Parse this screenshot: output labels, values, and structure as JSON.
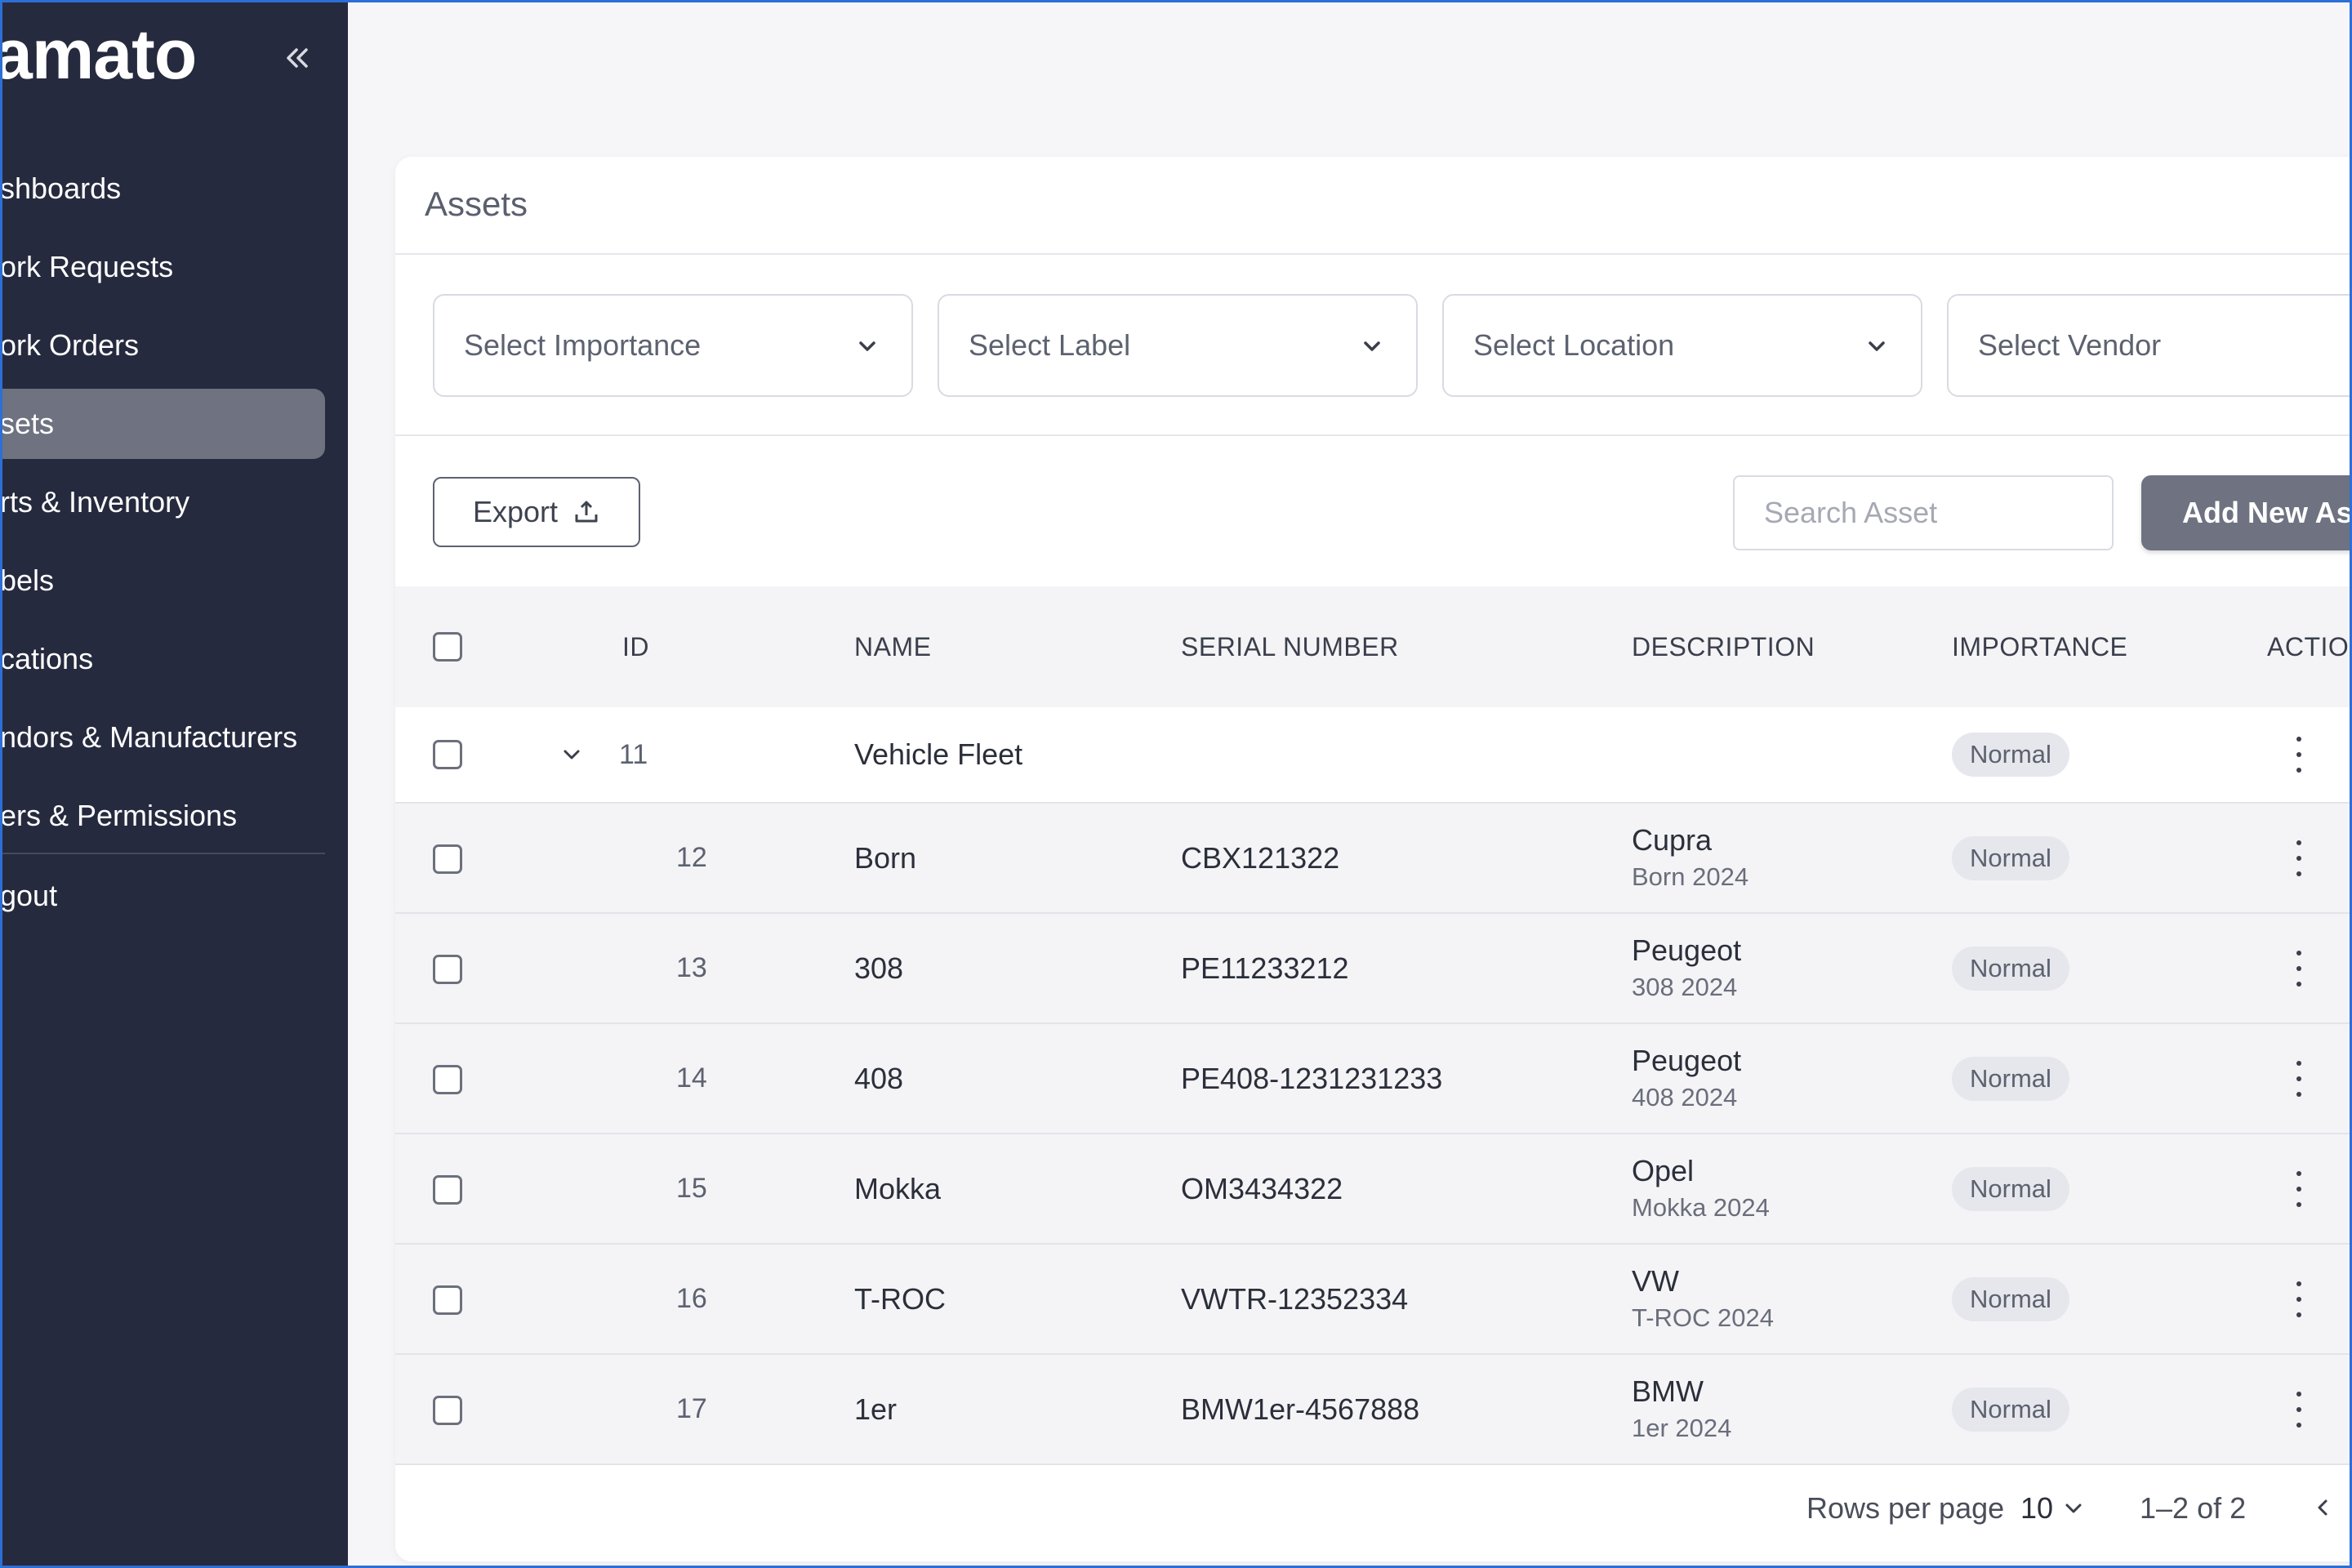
{
  "sidebar": {
    "brand": "Grashjs Atlas CMMS - Lamato",
    "brand_visible": "amato",
    "items": [
      {
        "label": "Dashboards",
        "visible": "shboards"
      },
      {
        "label": "Work Requests",
        "visible": "ork Requests"
      },
      {
        "label": "Work Orders",
        "visible": "ork Orders"
      },
      {
        "label": "Assets",
        "visible": "sets"
      },
      {
        "label": "Parts & Inventory",
        "visible": "rts & Inventory"
      },
      {
        "label": "Labels",
        "visible": "bels"
      },
      {
        "label": "Locations",
        "visible": "cations"
      },
      {
        "label": "Vendors & Manufacturers",
        "visible": "ndors & Manufacturers"
      },
      {
        "label": "Users & Permissions",
        "visible": "ers & Permissions"
      },
      {
        "label": "Logout",
        "visible": "gout"
      }
    ]
  },
  "card": {
    "title": "Assets",
    "filters": {
      "importance": "Select Importance",
      "label": "Select Label",
      "location": "Select Location",
      "vendor": "Select Vendor"
    },
    "export_label": "Export",
    "search_placeholder": "Search Asset",
    "add_label": "Add New Asset"
  },
  "table": {
    "columns": {
      "id": "ID",
      "name": "NAME",
      "serial": "SERIAL NUMBER",
      "description": "DESCRIPTION",
      "importance": "IMPORTANCE",
      "actions": "ACTIONS"
    },
    "parent": {
      "id": "11",
      "name": "Vehicle Fleet",
      "importance": "Normal"
    },
    "rows": [
      {
        "id": "12",
        "name": "Born",
        "serial": "CBX121322",
        "desc_title": "Cupra",
        "desc_sub": "Born 2024",
        "importance": "Normal"
      },
      {
        "id": "13",
        "name": "308",
        "serial": "PE11233212",
        "desc_title": "Peugeot",
        "desc_sub": "308 2024",
        "importance": "Normal"
      },
      {
        "id": "14",
        "name": "408",
        "serial": "PE408-1231231233",
        "desc_title": "Peugeot",
        "desc_sub": "408 2024",
        "importance": "Normal"
      },
      {
        "id": "15",
        "name": "Mokka",
        "serial": "OM3434322",
        "desc_title": "Opel",
        "desc_sub": "Mokka 2024",
        "importance": "Normal"
      },
      {
        "id": "16",
        "name": "T-ROC",
        "serial": "VWTR-12352334",
        "desc_title": "VW",
        "desc_sub": "T-ROC 2024",
        "importance": "Normal"
      },
      {
        "id": "17",
        "name": "1er",
        "serial": "BMW1er-4567888",
        "desc_title": "BMW",
        "desc_sub": "1er 2024",
        "importance": "Normal"
      }
    ]
  },
  "footer": {
    "rows_per_page_label": "Rows per page",
    "rows_per_page_value": "10",
    "range": "1–2 of 2"
  },
  "colors": {
    "sidebar_bg": "#262a3e",
    "active_item": "#6e7281",
    "accent_button": "#6e7281",
    "badge_bg": "#e6e7ec"
  }
}
